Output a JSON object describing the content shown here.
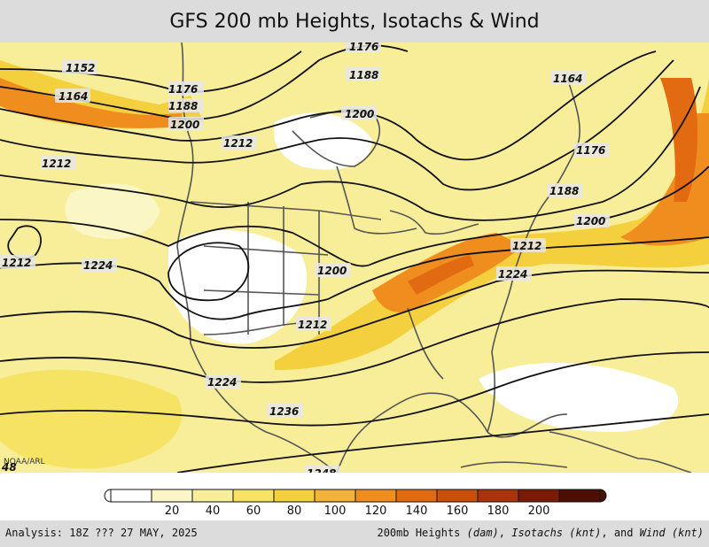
{
  "title": "GFS 200 mb Heights, Isotachs & Wind",
  "credit": "NOAA/ARL",
  "corner_label": "48",
  "contour_labels": [
    "1152",
    "1164",
    "1176",
    "1176",
    "1188",
    "1188",
    "1200",
    "1200",
    "1212",
    "1212",
    "1164",
    "1176",
    "1188",
    "1200",
    "1212",
    "1224",
    "1212",
    "1224",
    "1200",
    "1212",
    "1224",
    "1236",
    "1248"
  ],
  "colorbar": {
    "ticks": [
      "20",
      "40",
      "60",
      "80",
      "100",
      "120",
      "140",
      "160",
      "180",
      "200"
    ],
    "colors": [
      "#ffffff",
      "#fbf6c6",
      "#f8ee9a",
      "#f6e364",
      "#f4d03f",
      "#f3b23a",
      "#ef8e1e",
      "#e26a10",
      "#c94f0b",
      "#a9340b",
      "#7a1b08",
      "#4d0f05"
    ]
  },
  "footer": {
    "analysis": "Analysis: 18Z ??? 27 MAY, 2025",
    "legend_prefix": "200mb Heights ",
    "legend_heights_unit": "(dam)",
    "legend_isotachs": "Isotachs",
    "legend_isotachs_unit": "(knt)",
    "legend_wind": "Wind",
    "legend_wind_unit": "(knt)"
  }
}
